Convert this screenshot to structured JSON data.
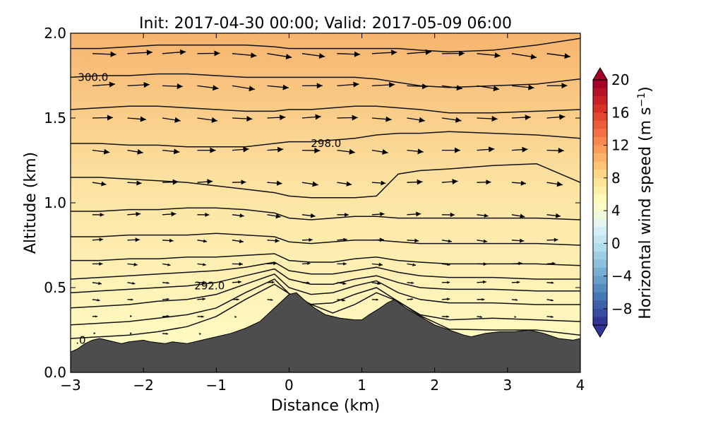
{
  "chart_data": {
    "type": "heatmap",
    "title": "Init: 2017-04-30 00:00; Valid: 2017-05-09 06:00",
    "xlabel": "Distance (km)",
    "ylabel": "Altitude (km)",
    "xlim": [
      -3,
      4
    ],
    "ylim": [
      0.0,
      2.0
    ],
    "x_ticks": [
      -3,
      -2,
      -1,
      0,
      1,
      2,
      3,
      4
    ],
    "y_ticks": [
      0.0,
      0.5,
      1.0,
      1.5,
      2.0
    ],
    "colorbar": {
      "label_main": "Horizontal wind speed (m s",
      "label_sup": "−1",
      "label_close": ")",
      "range": [
        -10,
        20
      ],
      "ticks": [
        -8,
        -4,
        0,
        4,
        8,
        12,
        16,
        20
      ],
      "extend": "both",
      "colors": [
        "#313695",
        "#4575b4",
        "#74add1",
        "#abd9e9",
        "#e0f3f8",
        "#ffffbf",
        "#fee090",
        "#fdae61",
        "#f46d43",
        "#d73027",
        "#a50026"
      ]
    },
    "field_colors": {
      "top": "#f6b46d",
      "middle": "#fce3a2",
      "bottom": "#ffffc8"
    },
    "terrain": {
      "color": "#4d4d4d",
      "x": [
        -3.0,
        -2.9,
        -2.8,
        -2.7,
        -2.6,
        -2.5,
        -2.3,
        -2.2,
        -2.0,
        -1.9,
        -1.7,
        -1.6,
        -1.4,
        -1.2,
        -1.0,
        -0.8,
        -0.6,
        -0.4,
        -0.3,
        -0.2,
        -0.1,
        0.0,
        0.1,
        0.2,
        0.35,
        0.5,
        0.7,
        0.9,
        1.0,
        1.1,
        1.25,
        1.35,
        1.45,
        1.6,
        1.8,
        2.0,
        2.2,
        2.4,
        2.5,
        2.7,
        2.9,
        3.1,
        3.3,
        3.5,
        3.7,
        3.9,
        4.0
      ],
      "y": [
        0.12,
        0.14,
        0.17,
        0.19,
        0.2,
        0.19,
        0.17,
        0.18,
        0.19,
        0.18,
        0.17,
        0.18,
        0.17,
        0.19,
        0.21,
        0.23,
        0.26,
        0.3,
        0.34,
        0.38,
        0.42,
        0.46,
        0.47,
        0.43,
        0.38,
        0.34,
        0.32,
        0.31,
        0.31,
        0.34,
        0.38,
        0.41,
        0.43,
        0.38,
        0.33,
        0.28,
        0.25,
        0.22,
        0.21,
        0.23,
        0.24,
        0.24,
        0.25,
        0.23,
        0.2,
        0.19,
        0.2
      ]
    },
    "contour_labels": [
      {
        "text": "300.0",
        "x": -2.9,
        "y": 1.74
      },
      {
        "text": "298.0",
        "x": 0.3,
        "y": 1.35
      },
      {
        "text": "292.0",
        "x": -1.3,
        "y": 0.51
      },
      {
        "text": ".0",
        "x": -2.93,
        "y": 0.19
      }
    ],
    "contour_levels": [
      {
        "name": "290",
        "y": [
          0.2,
          0.21,
          0.22,
          0.24,
          0.27,
          0.33,
          0.43,
          0.52,
          0.39,
          0.34,
          0.35,
          0.4,
          0.47,
          0.34,
          0.26,
          0.23,
          0.25,
          0.25,
          0.22
        ]
      },
      {
        "name": "291",
        "y": [
          0.28,
          0.29,
          0.3,
          0.32,
          0.34,
          0.38,
          0.47,
          0.55,
          0.45,
          0.4,
          0.41,
          0.46,
          0.5,
          0.4,
          0.34,
          0.31,
          0.32,
          0.31,
          0.3
        ]
      },
      {
        "name": "292",
        "y": [
          0.38,
          0.39,
          0.4,
          0.42,
          0.43,
          0.46,
          0.52,
          0.58,
          0.5,
          0.46,
          0.47,
          0.51,
          0.54,
          0.47,
          0.43,
          0.41,
          0.41,
          0.4,
          0.4
        ]
      },
      {
        "name": "293",
        "y": [
          0.47,
          0.48,
          0.49,
          0.5,
          0.51,
          0.53,
          0.57,
          0.61,
          0.55,
          0.52,
          0.52,
          0.55,
          0.57,
          0.53,
          0.5,
          0.49,
          0.49,
          0.48,
          0.48
        ]
      },
      {
        "name": "294",
        "y": [
          0.55,
          0.56,
          0.57,
          0.58,
          0.59,
          0.6,
          0.62,
          0.65,
          0.6,
          0.58,
          0.58,
          0.6,
          0.62,
          0.59,
          0.57,
          0.56,
          0.56,
          0.55,
          0.55
        ]
      },
      {
        "name": "295",
        "y": [
          0.66,
          0.66,
          0.67,
          0.67,
          0.68,
          0.68,
          0.69,
          0.7,
          0.66,
          0.65,
          0.65,
          0.67,
          0.68,
          0.66,
          0.65,
          0.64,
          0.64,
          0.64,
          0.63
        ]
      },
      {
        "name": "296",
        "y": [
          0.8,
          0.8,
          0.81,
          0.81,
          0.81,
          0.82,
          0.81,
          0.8,
          0.77,
          0.76,
          0.77,
          0.78,
          0.78,
          0.77,
          0.76,
          0.76,
          0.76,
          0.76,
          0.75
        ]
      },
      {
        "name": "297",
        "y": [
          0.95,
          0.95,
          0.96,
          0.96,
          0.97,
          0.97,
          0.96,
          0.94,
          0.91,
          0.9,
          0.91,
          0.92,
          0.92,
          0.91,
          0.91,
          0.91,
          0.91,
          0.91,
          0.9
        ]
      },
      {
        "name": "298a",
        "y": [
          1.15,
          1.15,
          1.14,
          1.13,
          1.12,
          1.1,
          1.08,
          1.06,
          1.04,
          1.03,
          1.03,
          1.03,
          1.04,
          1.17,
          1.19,
          1.2,
          1.22,
          1.23,
          1.12
        ]
      },
      {
        "name": "298b",
        "y": [
          1.35,
          1.35,
          1.34,
          1.34,
          1.33,
          1.33,
          1.33,
          1.35,
          1.36,
          1.36,
          1.37,
          1.38,
          1.4,
          1.41,
          1.41,
          1.42,
          1.41,
          1.4,
          1.38
        ]
      },
      {
        "name": "299",
        "y": [
          1.55,
          1.56,
          1.57,
          1.57,
          1.56,
          1.55,
          1.54,
          1.54,
          1.55,
          1.55,
          1.56,
          1.57,
          1.57,
          1.56,
          1.55,
          1.53,
          1.53,
          1.54,
          1.55
        ]
      },
      {
        "name": "300",
        "y": [
          1.74,
          1.75,
          1.75,
          1.76,
          1.76,
          1.75,
          1.74,
          1.74,
          1.74,
          1.74,
          1.74,
          1.74,
          1.73,
          1.71,
          1.69,
          1.68,
          1.69,
          1.7,
          1.73
        ]
      },
      {
        "name": "301",
        "y": [
          1.91,
          1.91,
          1.92,
          1.93,
          1.93,
          1.93,
          1.93,
          1.92,
          1.91,
          1.91,
          1.91,
          1.91,
          1.91,
          1.91,
          1.9,
          1.89,
          1.9,
          1.93,
          1.97
        ]
      }
    ],
    "contour_x": [
      -3.0,
      -2.6,
      -2.2,
      -1.8,
      -1.4,
      -1.0,
      -0.6,
      -0.2,
      0.0,
      0.3,
      0.6,
      0.9,
      1.2,
      1.5,
      1.8,
      2.2,
      2.8,
      3.4,
      4.0
    ],
    "vector_columns_x": [
      -2.7,
      -2.22,
      -1.74,
      -1.26,
      -0.78,
      -0.3,
      0.18,
      0.66,
      1.14,
      1.62,
      2.1,
      2.58,
      3.06,
      3.54
    ],
    "vector_rows_y": [
      1.88,
      1.69,
      1.5,
      1.31,
      1.12,
      0.93,
      0.78,
      0.64,
      0.53,
      0.43,
      0.33,
      0.23
    ]
  }
}
